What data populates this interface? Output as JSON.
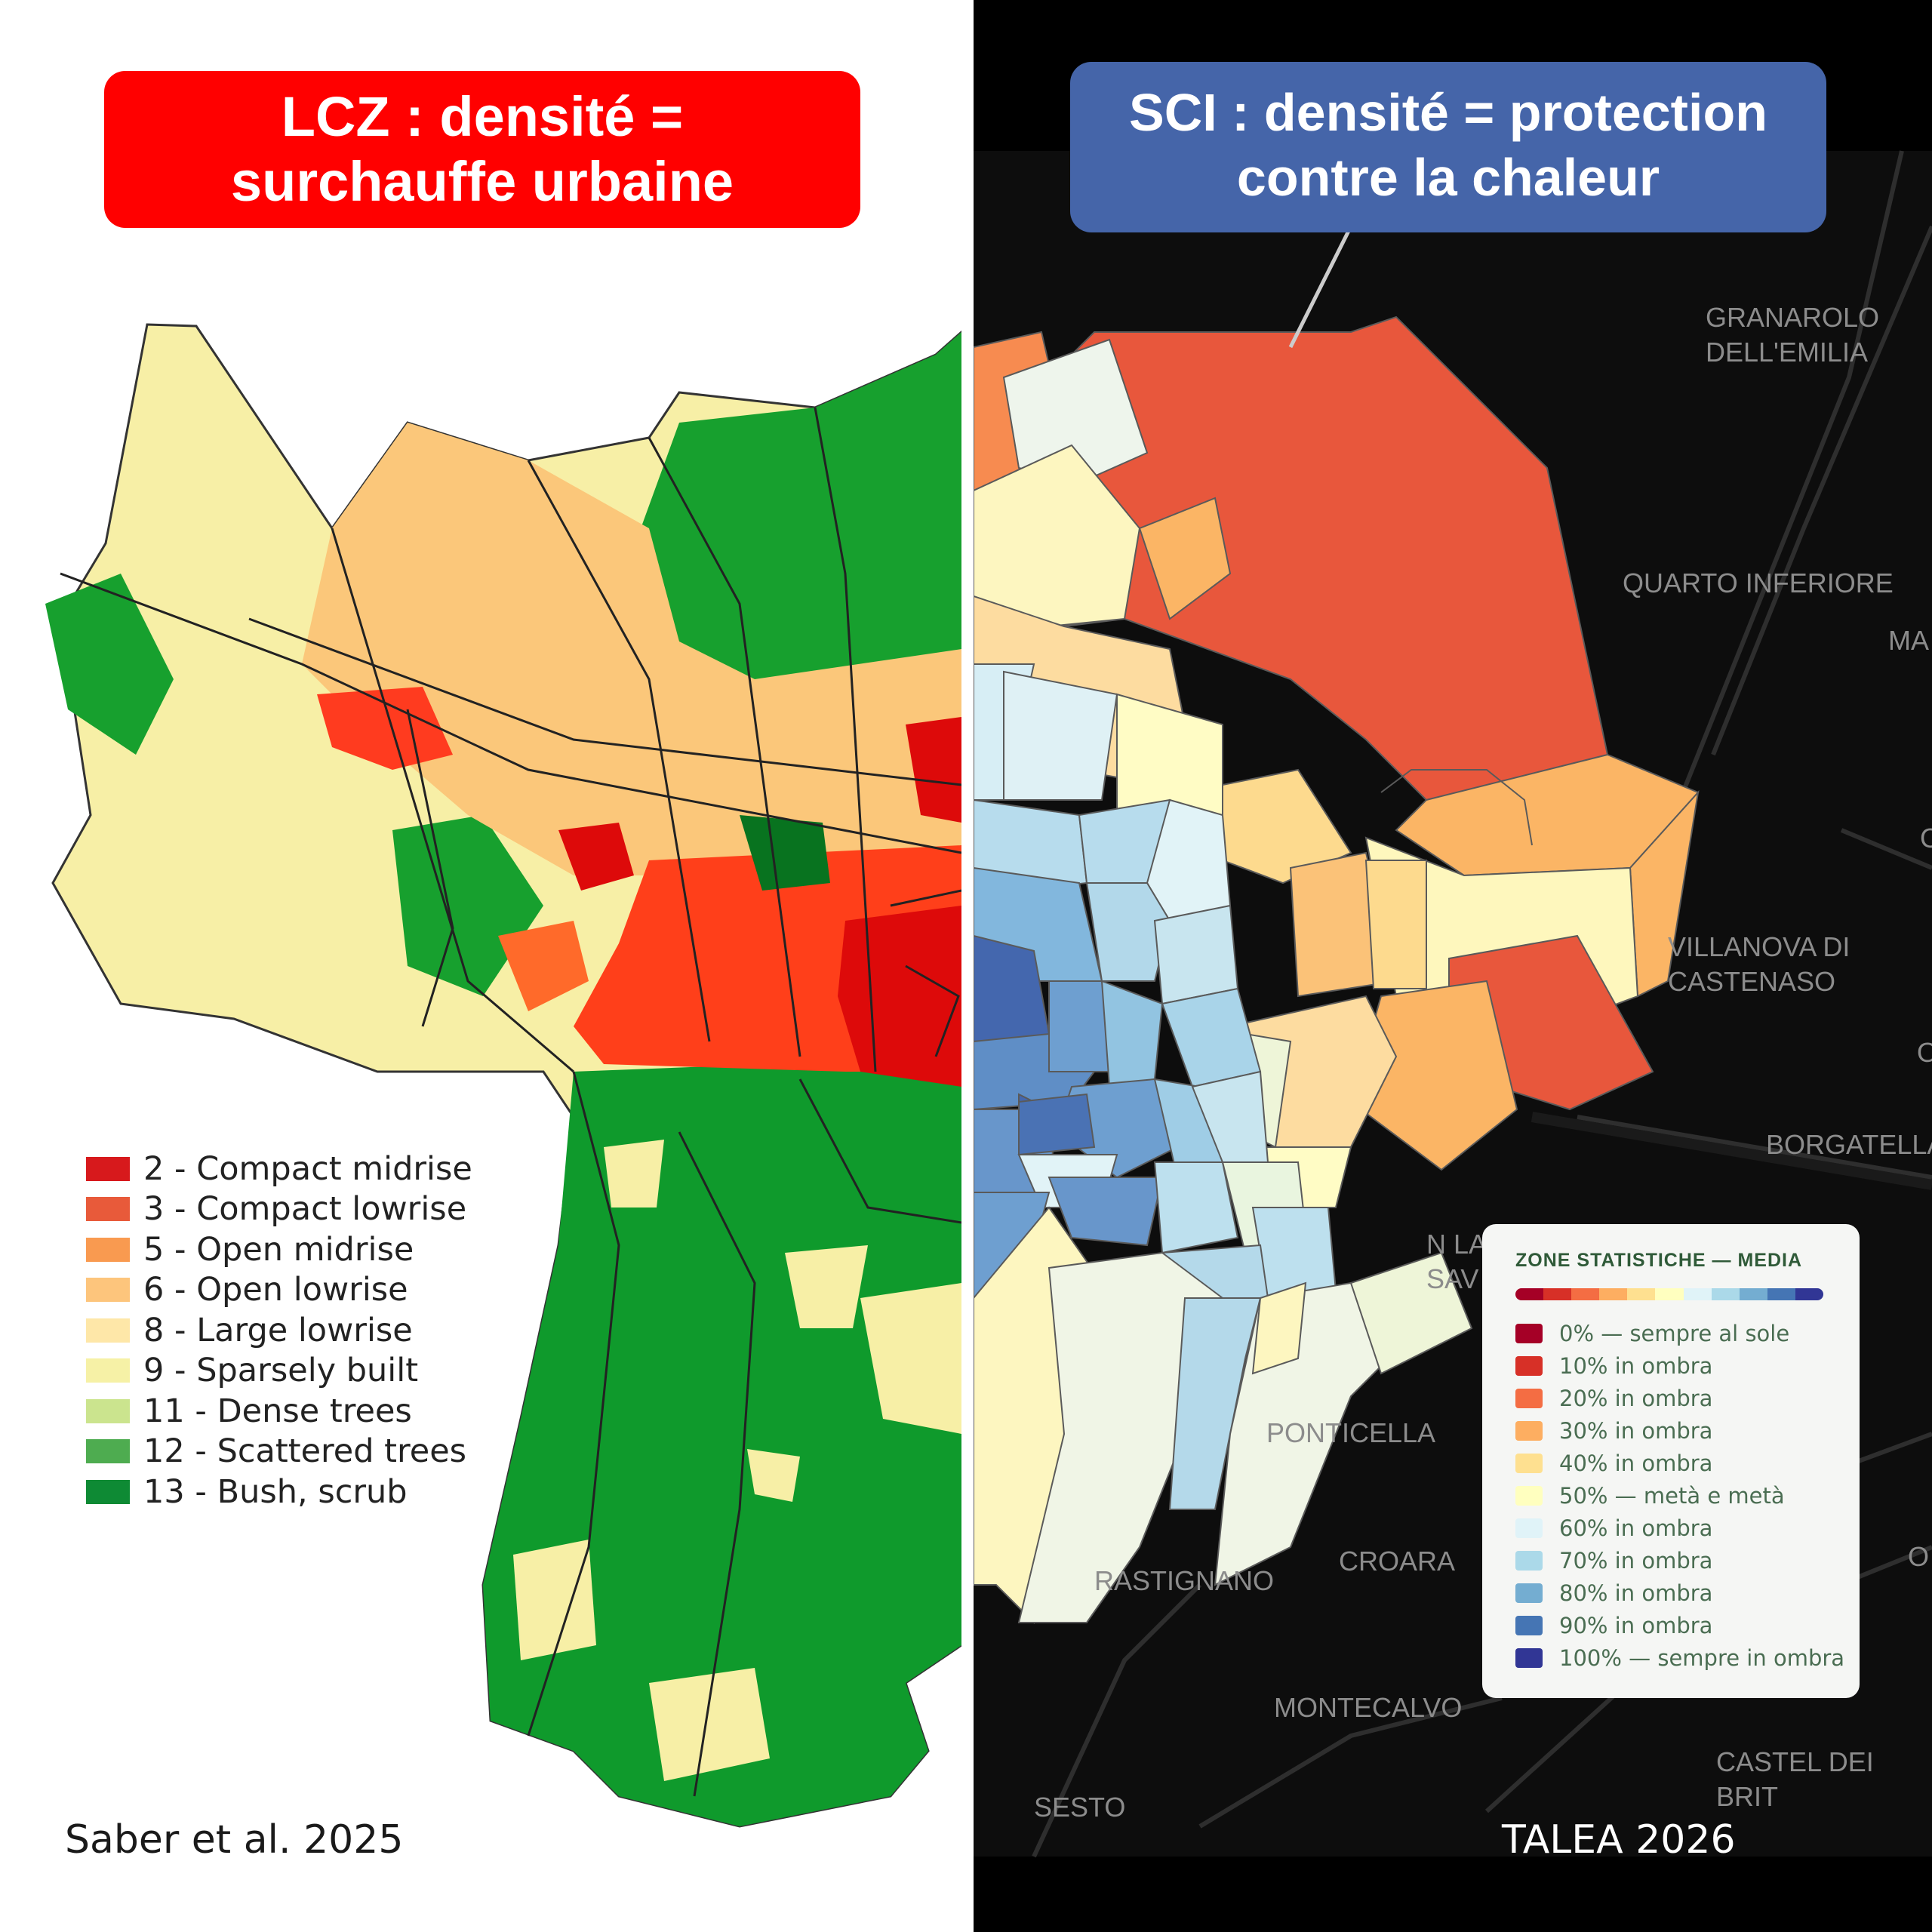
{
  "left": {
    "title_line1": "LCZ :  densité  =",
    "title_line2": "surchauffe urbaine",
    "credit": "Saber et al. 2025",
    "legend": [
      {
        "label": "2 - Compact midrise",
        "color": "#d7191c"
      },
      {
        "label": "3 - Compact lowrise",
        "color": "#e85a3a"
      },
      {
        "label": "5 - Open midrise",
        "color": "#f99a50"
      },
      {
        "label": "6 - Open lowrise",
        "color": "#fdc57c"
      },
      {
        "label": "8 - Large lowrise",
        "color": "#fee7a8"
      },
      {
        "label": "9 - Sparsely built",
        "color": "#f6f1a6"
      },
      {
        "label": "11 - Dense trees",
        "color": "#cbe48e"
      },
      {
        "label": "12 - Scattered trees",
        "color": "#4eac50"
      },
      {
        "label": "13 - Bush, scrub",
        "color": "#0e8a34"
      }
    ]
  },
  "right": {
    "title_line1": "SCI :  densité  = protection",
    "title_line2": "contre la chaleur",
    "credit": "TALEA 2026",
    "places": {
      "granarolo": "GRANAROLO\nDELL'EMILIA",
      "quarto": "QUARTO INFERIORE",
      "ma": "MA",
      "villanova": "VILLANOVA DI\nCASTENASO",
      "borgatella": "BORGATELLA",
      "savena": "N LA\nSAV",
      "ponticella": "PONTICELLA",
      "croara": "CROARA",
      "rastignano": "RASTIGNANO",
      "montecalvo": "MONTECALVO",
      "castel": "CASTEL DEI BRIT",
      "sesto": "SESTO",
      "o1": "O",
      "o2": "O",
      "c1": "C"
    },
    "legend": {
      "header": "ZONE STATISTICHE — MEDIA",
      "items": [
        {
          "label": "0% — sempre al sole",
          "color": "#a50026"
        },
        {
          "label": "10% in ombra",
          "color": "#d73027"
        },
        {
          "label": "20% in ombra",
          "color": "#f46d43"
        },
        {
          "label": "30% in ombra",
          "color": "#fdae61"
        },
        {
          "label": "40% in ombra",
          "color": "#fee090"
        },
        {
          "label": "50% — metà e metà",
          "color": "#ffffbf"
        },
        {
          "label": "60% in ombra",
          "color": "#e0f3f8"
        },
        {
          "label": "70% in ombra",
          "color": "#abd9e9"
        },
        {
          "label": "80% in ombra",
          "color": "#74add1"
        },
        {
          "label": "90% in ombra",
          "color": "#4575b4"
        },
        {
          "label": "100% — sempre in ombra",
          "color": "#313695"
        }
      ]
    }
  }
}
